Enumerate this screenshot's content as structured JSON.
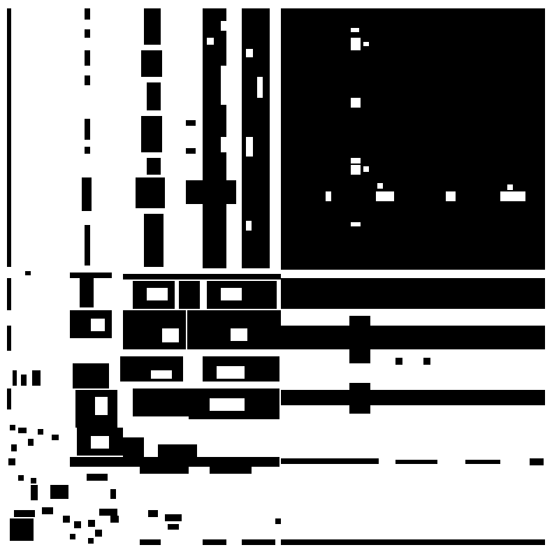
{
  "figure": {
    "kind": "binary-pixel-matrix",
    "foreground_color": "#000000",
    "background_color": "#ffffff",
    "printed_text": ""
  },
  "blocks": [
    {
      "name": "top-right-dense-block",
      "fill": "dense",
      "holes": 9
    },
    {
      "name": "left-vertical-bands",
      "fill": "banded"
    },
    {
      "name": "middle-horizontal-bands",
      "fill": "banded"
    },
    {
      "name": "lower-left-sparse-block",
      "fill": "sparse"
    },
    {
      "name": "bottom-strip",
      "fill": "line"
    }
  ]
}
